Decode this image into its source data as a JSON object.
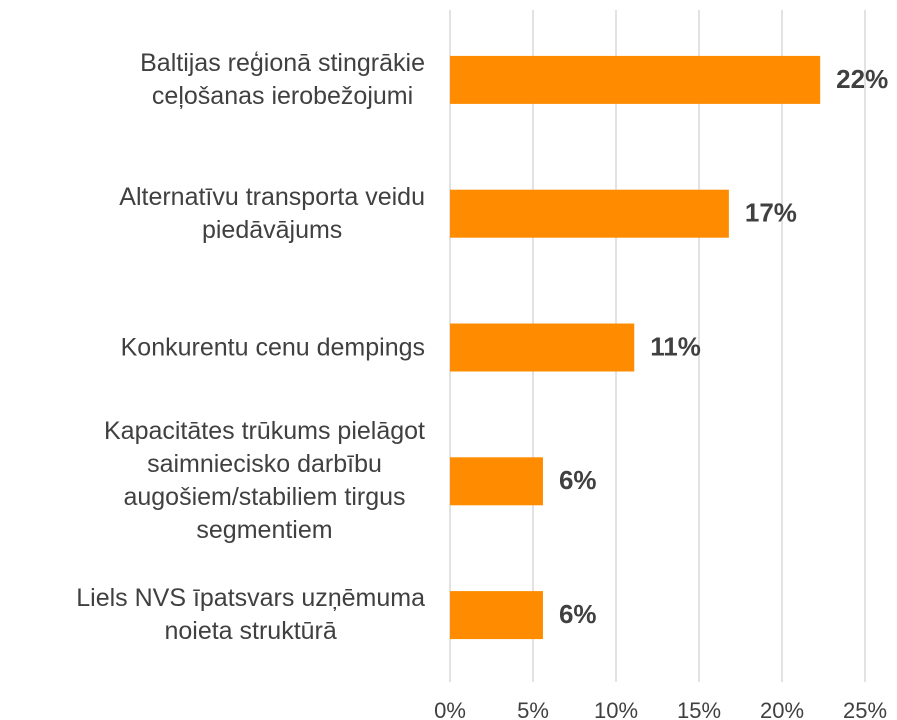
{
  "chart_data": {
    "type": "bar",
    "orientation": "horizontal",
    "categories": [
      [
        "Baltijas reģionā stingrākie",
        "ceļošanas ierobežojumi"
      ],
      [
        "Alternatīvu transporta veidu",
        "piedāvājums"
      ],
      [
        "Konkurentu cenu dempings"
      ],
      [
        "Kapacitātes trūkums pielāgot",
        "saimniecisko darbību",
        "augošiem/stabiliem tirgus",
        "segmentiem"
      ],
      [
        "Liels NVS īpatsvars uzņēmuma",
        "noieta struktūrā"
      ]
    ],
    "values": [
      22.3,
      16.8,
      11.1,
      5.6,
      5.6
    ],
    "value_labels": [
      "22%",
      "17%",
      "11%",
      "6%",
      "6%"
    ],
    "color": "#ff8c00",
    "xlim": [
      0,
      25
    ],
    "xticks": [
      {
        "value": 0,
        "label": "0%"
      },
      {
        "value": 5,
        "label": "5%"
      },
      {
        "value": 10,
        "label": "10%"
      },
      {
        "value": 15,
        "label": "15%"
      },
      {
        "value": 20,
        "label": "20%"
      },
      {
        "value": 25,
        "label": "25%"
      }
    ],
    "grid": true
  }
}
